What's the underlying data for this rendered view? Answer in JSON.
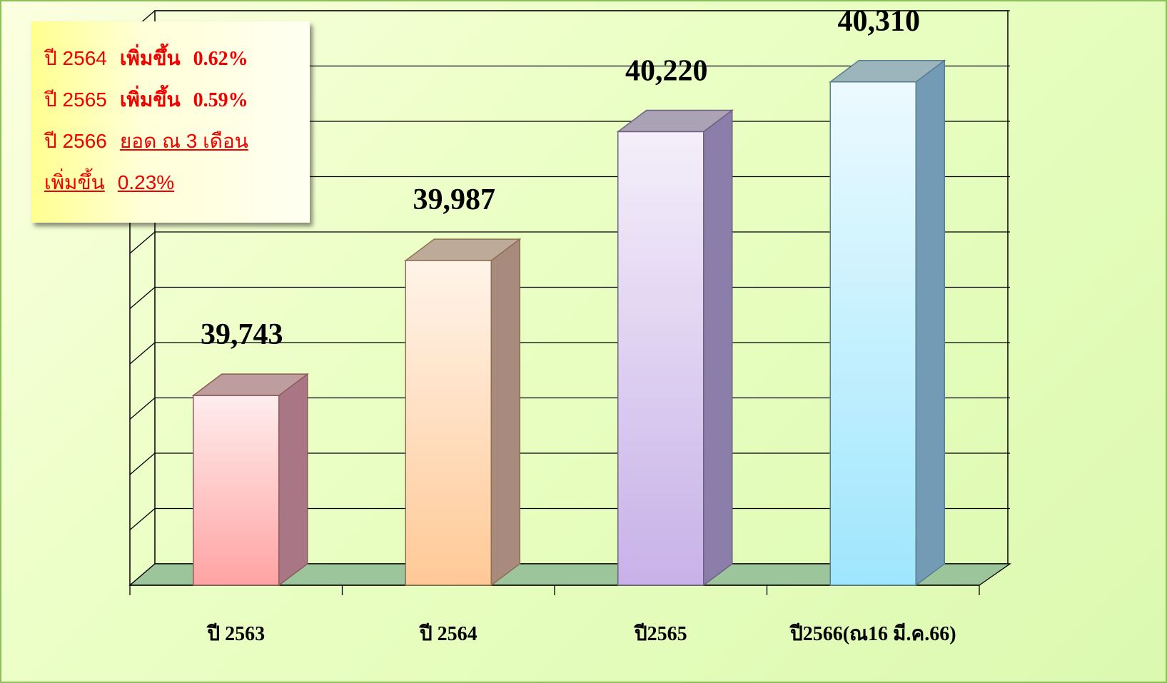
{
  "chart_data": {
    "type": "bar",
    "categories": [
      "ปี 2563",
      "ปี 2564",
      "ปี2565",
      "ปี2566(ณ16 มี.ค.66)"
    ],
    "values": [
      39743,
      39987,
      40220,
      40310
    ],
    "value_labels": [
      "39,743",
      "39,987",
      "40,220",
      "40,310"
    ],
    "colors": [
      "#ffa3a3",
      "#ffc996",
      "#c8b1e8",
      "#9fe6fd"
    ],
    "ylim": [
      39400,
      40400
    ],
    "yticks": [
      39400,
      39500,
      39600,
      39700,
      39800,
      39900,
      40000,
      40100,
      40200,
      40300,
      40400
    ],
    "grid": true,
    "annotation": [
      [
        "ปี 2564",
        "เพิ่มขึ้น",
        "0.62%"
      ],
      [
        "ปี 2565",
        "เพิ่มขึ้น",
        "0.59%"
      ],
      [
        "ปี 2566",
        "ยอด ณ 3 เดือน"
      ],
      [
        "เพิ่มขึ้น",
        "0.23%"
      ]
    ]
  }
}
